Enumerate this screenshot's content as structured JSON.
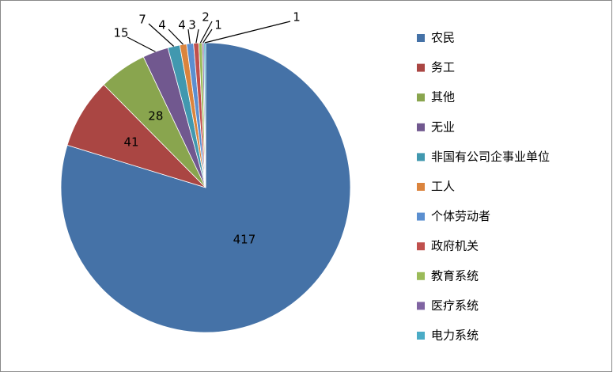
{
  "chart_data": {
    "type": "pie",
    "categories": [
      "农民",
      "务工",
      "其他",
      "无业",
      "非国有公司企事业单位",
      "工人",
      "个体劳动者",
      "政府机关",
      "教育系统",
      "医疗系统",
      "电力系统"
    ],
    "values": [
      417,
      41,
      28,
      15,
      7,
      4,
      4,
      3,
      2,
      1,
      1
    ],
    "colors": [
      "#4572A7",
      "#AA4643",
      "#89A54E",
      "#71588F",
      "#4198AF",
      "#DB843D",
      "#5B8FD0",
      "#C0504D",
      "#9BBB59",
      "#8064A2",
      "#4BACC6"
    ],
    "legend": "right"
  }
}
